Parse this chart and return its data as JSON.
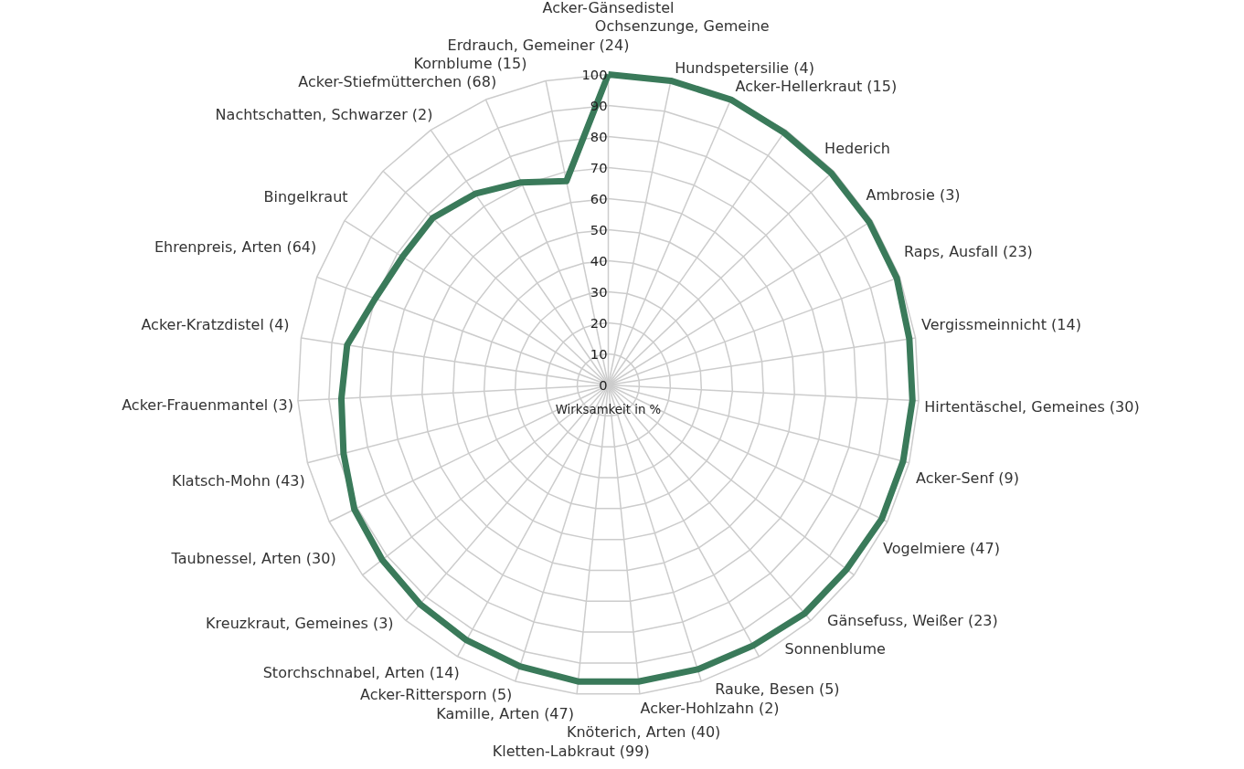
{
  "chart_data": {
    "type": "radar",
    "ylabel": "Wirksamkeit in %",
    "categories": [
      "Acker-Gänsedistel",
      "Ochsenzunge, Gemeine",
      "Hundspetersilie (4)",
      "Acker-Hellerkraut (15)",
      "Hederich",
      "Ambrosie (3)",
      "Raps, Ausfall (23)",
      "Vergissmeinnicht (14)",
      "Hirtentäschel, Gemeines (30)",
      "Acker-Senf (9)",
      "Vogelmiere (47)",
      "Gänsefuss, Weißer (23)",
      "Sonnenblume",
      "Rauke, Besen (5)",
      "Acker-Hohlzahn (2)",
      "Knöterich, Arten (40)",
      "Kletten-Labkraut (99)",
      "Kamille, Arten (47)",
      "Acker-Rittersporn (5)",
      "Storchschnabel, Arten (14)",
      "Kreuzkraut, Gemeines (3)",
      "Taubnessel, Arten (30)",
      "Klatsch-Mohn (43)",
      "Acker-Frauenmantel (3)",
      "Acker-Kratzdistel (4)",
      "Ehrenpreis, Arten (64)",
      "Bingelkraut",
      "Nachtschatten, Schwarzer (2)",
      "Acker-Stiefmütterchen (68)",
      "Kornblume (15)",
      "Erdrauch, Gemeiner (24)"
    ],
    "series": [
      {
        "color": "#3a7a5a",
        "values": [
          100,
          100,
          100,
          99,
          99,
          99,
          99,
          98,
          98,
          98,
          98,
          97,
          97,
          96,
          96,
          96,
          96,
          95,
          94,
          93,
          92,
          91,
          88,
          86,
          85,
          80,
          78,
          78,
          75,
          71,
          67
        ]
      }
    ],
    "ylim": [
      0,
      100
    ],
    "yticks": [
      0,
      10,
      20,
      30,
      40,
      50,
      60,
      70,
      80,
      90,
      100
    ],
    "grid": true
  }
}
